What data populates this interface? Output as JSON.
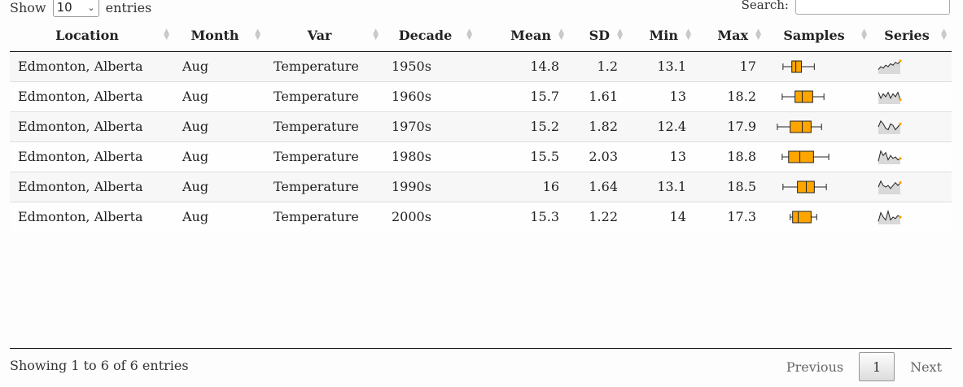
{
  "length_menu": {
    "prefix": "Show",
    "value": "10",
    "suffix": "entries"
  },
  "search": {
    "label": "Search:",
    "value": ""
  },
  "columns": [
    "Location",
    "Month",
    "Var",
    "Decade",
    "Mean",
    "SD",
    "Min",
    "Max",
    "Samples",
    "Series"
  ],
  "rows": [
    {
      "location": "Edmonton, Alberta",
      "month": "Aug",
      "var": "Temperature",
      "decade": "1950s",
      "mean": "14.8",
      "sd": "1.2",
      "min": "13.1",
      "max": "17",
      "box": [
        13.1,
        14.2,
        14.7,
        15.4,
        17.0
      ],
      "series": [
        0.3,
        0.5,
        0.4,
        0.6,
        0.5,
        0.7,
        0.6,
        0.8,
        0.7,
        0.9
      ]
    },
    {
      "location": "Edmonton, Alberta",
      "month": "Aug",
      "var": "Temperature",
      "decade": "1960s",
      "mean": "15.7",
      "sd": "1.61",
      "min": "13",
      "max": "18.2",
      "box": [
        13.0,
        14.6,
        15.5,
        16.8,
        18.2
      ],
      "series": [
        0.8,
        0.4,
        0.7,
        0.5,
        0.8,
        0.4,
        0.7,
        0.5,
        0.8,
        0.3
      ]
    },
    {
      "location": "Edmonton, Alberta",
      "month": "Aug",
      "var": "Temperature",
      "decade": "1970s",
      "mean": "15.2",
      "sd": "1.82",
      "min": "12.4",
      "max": "17.9",
      "box": [
        12.4,
        14.0,
        15.5,
        16.6,
        17.9
      ],
      "series": [
        0.5,
        0.9,
        0.7,
        0.4,
        0.3,
        0.7,
        0.6,
        0.3,
        0.5,
        0.7
      ]
    },
    {
      "location": "Edmonton, Alberta",
      "month": "Aug",
      "var": "Temperature",
      "decade": "1980s",
      "mean": "15.5",
      "sd": "2.03",
      "min": "13",
      "max": "18.8",
      "box": [
        13.0,
        13.8,
        15.2,
        16.9,
        18.8
      ],
      "series": [
        0.2,
        0.9,
        0.6,
        0.8,
        0.3,
        0.6,
        0.4,
        0.5,
        0.3,
        0.4
      ]
    },
    {
      "location": "Edmonton, Alberta",
      "month": "Aug",
      "var": "Temperature",
      "decade": "1990s",
      "mean": "16",
      "sd": "1.64",
      "min": "13.1",
      "max": "18.5",
      "box": [
        13.1,
        14.9,
        16.0,
        17.0,
        18.5
      ],
      "series": [
        0.5,
        0.9,
        0.6,
        0.5,
        0.6,
        0.4,
        0.6,
        0.8,
        0.6,
        0.8
      ]
    },
    {
      "location": "Edmonton, Alberta",
      "month": "Aug",
      "var": "Temperature",
      "decade": "2000s",
      "mean": "15.3",
      "sd": "1.22",
      "min": "14",
      "max": "17.3",
      "box": [
        14.0,
        14.3,
        15.0,
        16.6,
        17.3
      ],
      "series": [
        0.2,
        0.8,
        0.5,
        0.3,
        0.9,
        0.3,
        0.5,
        0.4,
        0.6,
        0.5
      ]
    }
  ],
  "info": "Showing 1 to 6 of 6 entries",
  "pager": {
    "previous": "Previous",
    "current": "1",
    "next": "Next"
  },
  "colors": {
    "box_fill": "#FFA500",
    "spark_fill": "#d9d9d9",
    "spark_line": "#222222",
    "spark_dot": "#FFA500"
  }
}
